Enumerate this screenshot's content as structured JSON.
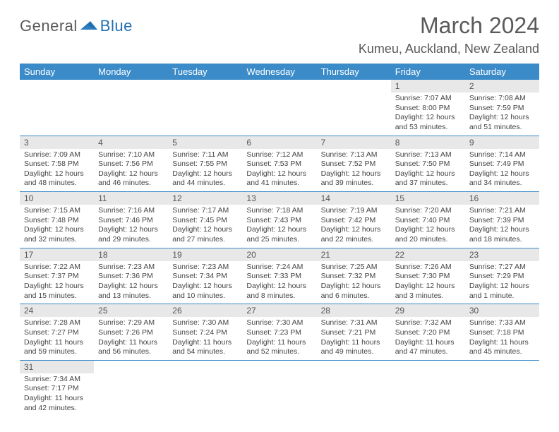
{
  "brand": {
    "part1": "General",
    "part2": "Blue"
  },
  "title": "March 2024",
  "location": "Kumeu, Auckland, New Zealand",
  "colors": {
    "header_bg": "#3b8bc9",
    "header_text": "#ffffff",
    "daynum_bg": "#e8e8e8",
    "body_text": "#444444",
    "brand_gray": "#5a5a5a",
    "brand_blue": "#1f6fb2",
    "page_bg": "#ffffff",
    "row_border": "#3b8bc9"
  },
  "typography": {
    "title_fontsize": 32,
    "location_fontsize": 18,
    "dow_fontsize": 13,
    "daynum_fontsize": 12,
    "body_fontsize": 10.5,
    "logo_fontsize": 22
  },
  "dow": [
    "Sunday",
    "Monday",
    "Tuesday",
    "Wednesday",
    "Thursday",
    "Friday",
    "Saturday"
  ],
  "weeks": [
    [
      null,
      null,
      null,
      null,
      null,
      {
        "n": "1",
        "sr": "Sunrise: 7:07 AM",
        "ss": "Sunset: 8:00 PM",
        "dl": "Daylight: 12 hours and 53 minutes."
      },
      {
        "n": "2",
        "sr": "Sunrise: 7:08 AM",
        "ss": "Sunset: 7:59 PM",
        "dl": "Daylight: 12 hours and 51 minutes."
      }
    ],
    [
      {
        "n": "3",
        "sr": "Sunrise: 7:09 AM",
        "ss": "Sunset: 7:58 PM",
        "dl": "Daylight: 12 hours and 48 minutes."
      },
      {
        "n": "4",
        "sr": "Sunrise: 7:10 AM",
        "ss": "Sunset: 7:56 PM",
        "dl": "Daylight: 12 hours and 46 minutes."
      },
      {
        "n": "5",
        "sr": "Sunrise: 7:11 AM",
        "ss": "Sunset: 7:55 PM",
        "dl": "Daylight: 12 hours and 44 minutes."
      },
      {
        "n": "6",
        "sr": "Sunrise: 7:12 AM",
        "ss": "Sunset: 7:53 PM",
        "dl": "Daylight: 12 hours and 41 minutes."
      },
      {
        "n": "7",
        "sr": "Sunrise: 7:13 AM",
        "ss": "Sunset: 7:52 PM",
        "dl": "Daylight: 12 hours and 39 minutes."
      },
      {
        "n": "8",
        "sr": "Sunrise: 7:13 AM",
        "ss": "Sunset: 7:50 PM",
        "dl": "Daylight: 12 hours and 37 minutes."
      },
      {
        "n": "9",
        "sr": "Sunrise: 7:14 AM",
        "ss": "Sunset: 7:49 PM",
        "dl": "Daylight: 12 hours and 34 minutes."
      }
    ],
    [
      {
        "n": "10",
        "sr": "Sunrise: 7:15 AM",
        "ss": "Sunset: 7:48 PM",
        "dl": "Daylight: 12 hours and 32 minutes."
      },
      {
        "n": "11",
        "sr": "Sunrise: 7:16 AM",
        "ss": "Sunset: 7:46 PM",
        "dl": "Daylight: 12 hours and 29 minutes."
      },
      {
        "n": "12",
        "sr": "Sunrise: 7:17 AM",
        "ss": "Sunset: 7:45 PM",
        "dl": "Daylight: 12 hours and 27 minutes."
      },
      {
        "n": "13",
        "sr": "Sunrise: 7:18 AM",
        "ss": "Sunset: 7:43 PM",
        "dl": "Daylight: 12 hours and 25 minutes."
      },
      {
        "n": "14",
        "sr": "Sunrise: 7:19 AM",
        "ss": "Sunset: 7:42 PM",
        "dl": "Daylight: 12 hours and 22 minutes."
      },
      {
        "n": "15",
        "sr": "Sunrise: 7:20 AM",
        "ss": "Sunset: 7:40 PM",
        "dl": "Daylight: 12 hours and 20 minutes."
      },
      {
        "n": "16",
        "sr": "Sunrise: 7:21 AM",
        "ss": "Sunset: 7:39 PM",
        "dl": "Daylight: 12 hours and 18 minutes."
      }
    ],
    [
      {
        "n": "17",
        "sr": "Sunrise: 7:22 AM",
        "ss": "Sunset: 7:37 PM",
        "dl": "Daylight: 12 hours and 15 minutes."
      },
      {
        "n": "18",
        "sr": "Sunrise: 7:23 AM",
        "ss": "Sunset: 7:36 PM",
        "dl": "Daylight: 12 hours and 13 minutes."
      },
      {
        "n": "19",
        "sr": "Sunrise: 7:23 AM",
        "ss": "Sunset: 7:34 PM",
        "dl": "Daylight: 12 hours and 10 minutes."
      },
      {
        "n": "20",
        "sr": "Sunrise: 7:24 AM",
        "ss": "Sunset: 7:33 PM",
        "dl": "Daylight: 12 hours and 8 minutes."
      },
      {
        "n": "21",
        "sr": "Sunrise: 7:25 AM",
        "ss": "Sunset: 7:32 PM",
        "dl": "Daylight: 12 hours and 6 minutes."
      },
      {
        "n": "22",
        "sr": "Sunrise: 7:26 AM",
        "ss": "Sunset: 7:30 PM",
        "dl": "Daylight: 12 hours and 3 minutes."
      },
      {
        "n": "23",
        "sr": "Sunrise: 7:27 AM",
        "ss": "Sunset: 7:29 PM",
        "dl": "Daylight: 12 hours and 1 minute."
      }
    ],
    [
      {
        "n": "24",
        "sr": "Sunrise: 7:28 AM",
        "ss": "Sunset: 7:27 PM",
        "dl": "Daylight: 11 hours and 59 minutes."
      },
      {
        "n": "25",
        "sr": "Sunrise: 7:29 AM",
        "ss": "Sunset: 7:26 PM",
        "dl": "Daylight: 11 hours and 56 minutes."
      },
      {
        "n": "26",
        "sr": "Sunrise: 7:30 AM",
        "ss": "Sunset: 7:24 PM",
        "dl": "Daylight: 11 hours and 54 minutes."
      },
      {
        "n": "27",
        "sr": "Sunrise: 7:30 AM",
        "ss": "Sunset: 7:23 PM",
        "dl": "Daylight: 11 hours and 52 minutes."
      },
      {
        "n": "28",
        "sr": "Sunrise: 7:31 AM",
        "ss": "Sunset: 7:21 PM",
        "dl": "Daylight: 11 hours and 49 minutes."
      },
      {
        "n": "29",
        "sr": "Sunrise: 7:32 AM",
        "ss": "Sunset: 7:20 PM",
        "dl": "Daylight: 11 hours and 47 minutes."
      },
      {
        "n": "30",
        "sr": "Sunrise: 7:33 AM",
        "ss": "Sunset: 7:18 PM",
        "dl": "Daylight: 11 hours and 45 minutes."
      }
    ],
    [
      {
        "n": "31",
        "sr": "Sunrise: 7:34 AM",
        "ss": "Sunset: 7:17 PM",
        "dl": "Daylight: 11 hours and 42 minutes."
      },
      null,
      null,
      null,
      null,
      null,
      null
    ]
  ]
}
